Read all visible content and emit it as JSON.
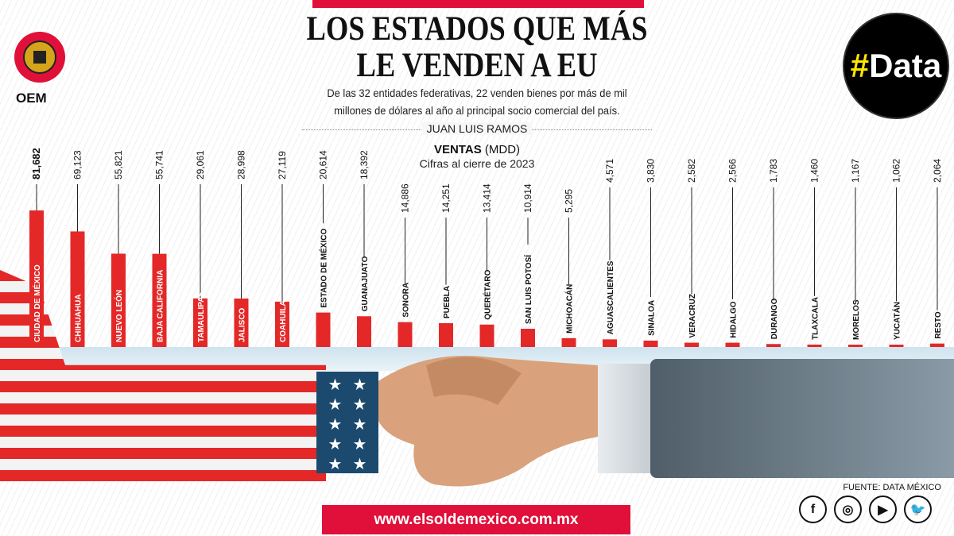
{
  "header": {
    "title_line1": "LOS ESTADOS QUE MÁS",
    "title_line2": "LE VENDEN A EU",
    "subtitle_line1": "De las 32 entidades federativas, 22 venden bienes por más de mil",
    "subtitle_line2": "millones de dólares al año al principal socio comercial del país.",
    "author": "JUAN LUIS RAMOS",
    "logo_text": "OEM",
    "badge_hash": "#",
    "badge_text": "Data"
  },
  "chart_data": {
    "type": "bar",
    "title": "VENTAS",
    "title_unit": "(MDD)",
    "subtitle": "Cifras al cierre de 2023",
    "categories": [
      "CIUDAD DE MÉXICO",
      "CHIHUAHUA",
      "NUEVO LEÓN",
      "BAJA CALIFORNIA",
      "TAMAULIPAS",
      "JALISCO",
      "COAHUILA",
      "ESTADO DE MÉXICO",
      "GUANAJUATO",
      "SONORA",
      "PUEBLA",
      "QUERÉTARO",
      "SAN LUIS POTOSÍ",
      "MICHOACÁN",
      "AGUASCALIENTES",
      "SINALOA",
      "VERACRUZ",
      "HIDALGO",
      "DURANGO",
      "TLAXCALA",
      "MORELOS",
      "YUCATÁN",
      "RESTO"
    ],
    "values": [
      81682,
      69123,
      55821,
      55741,
      29061,
      28998,
      27119,
      20614,
      18392,
      14886,
      14251,
      13414,
      10914,
      5295,
      4571,
      3830,
      2582,
      2566,
      1783,
      1460,
      1167,
      1062,
      2064
    ],
    "labels": [
      "81,682",
      "69,123",
      "55,821",
      "55,741",
      "29,061",
      "28,998",
      "27,119",
      "20,614",
      "18,392",
      "14,886",
      "14,251",
      "13,414",
      "10,914",
      "5,295",
      "4,571",
      "3,830",
      "2,582",
      "2,566",
      "1,783",
      "1,460",
      "1,167",
      "1,062",
      "2,064"
    ],
    "bar_color": "#e42828"
  },
  "footer": {
    "source": "FUENTE: DATA MÉXICO",
    "url": "www.elsoldemexico.com.mx",
    "social": [
      "facebook",
      "instagram",
      "youtube",
      "twitter"
    ],
    "social_glyphs": [
      "f",
      "◎",
      "▶",
      "🐦"
    ]
  },
  "colors": {
    "accent": "#e0103a",
    "badge_yellow": "#ffe500"
  }
}
